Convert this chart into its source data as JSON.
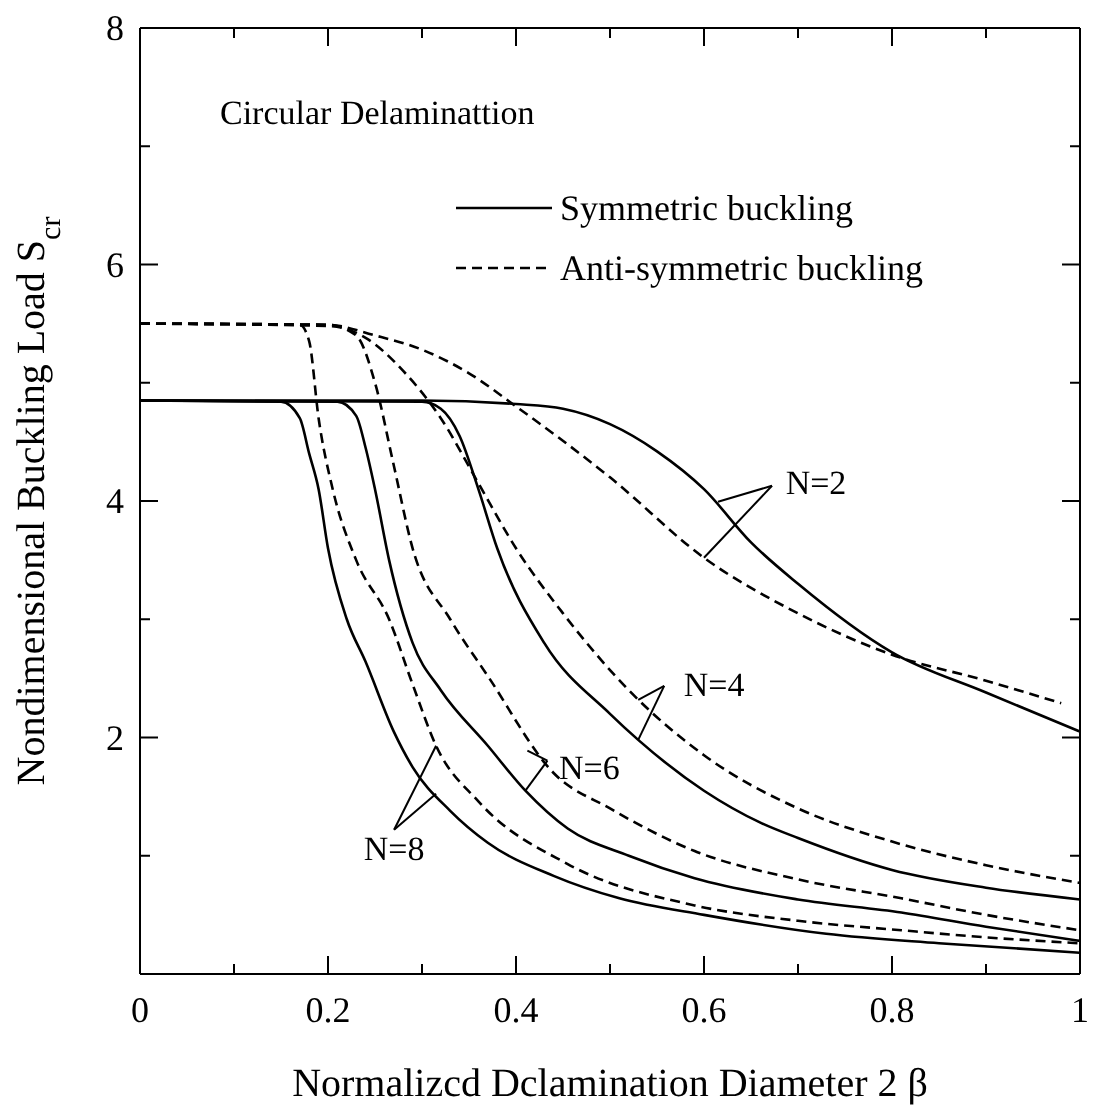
{
  "chart_data": {
    "type": "line",
    "xlabel": "Normalizcd Dclamination Diameter 2 β",
    "ylabel": "Nondimensional Buckling Load  S$_{cr}$",
    "xlim": [
      0,
      1
    ],
    "ylim": [
      0,
      8
    ],
    "xticks": [
      0,
      {
        "value": 0.1,
        "label": null
      },
      0.2,
      {
        "value": 0.3,
        "label": null
      },
      0.4,
      {
        "value": 0.5,
        "label": null
      },
      0.6,
      {
        "value": 0.7,
        "label": null
      },
      0.8,
      {
        "value": 0.9,
        "label": null
      },
      1
    ],
    "yticks": [
      {
        "value": 0,
        "label": null
      },
      {
        "value": 1,
        "label": null
      },
      2,
      {
        "value": 3,
        "label": null
      },
      4,
      {
        "value": 5,
        "label": null
      },
      6,
      {
        "value": 7,
        "label": null
      },
      8
    ],
    "legend": "top right",
    "marker": "none",
    "annotations": [
      "Circular Delaminattion",
      {
        "text": "N=2",
        "x": 0.6,
        "y": 3.52
      },
      {
        "text": "N=4",
        "x": 0.53,
        "y": 1.98
      },
      {
        "text": "N=6",
        "x": 0.41,
        "y": 1.55
      },
      {
        "text": "N=8",
        "x": 0.315,
        "y": 1.93
      }
    ],
    "series": [
      {
        "name": "Symmetric buckling",
        "color": "#000000",
        "line_style": "solid",
        "x": [
          0,
          0.3,
          0.4,
          0.45,
          0.5,
          0.55,
          0.6,
          0.65,
          0.7,
          0.8,
          0.9,
          1.0
        ],
        "values": [
          4.85,
          4.85,
          4.82,
          4.78,
          4.65,
          4.42,
          4.1,
          3.65,
          3.3,
          2.72,
          2.38,
          2.05
        ]
      },
      {
        "name": "Anti-symmetric buckling",
        "color": "#000000",
        "line_style": "dashed",
        "x": [
          0,
          0.2,
          0.25,
          0.3,
          0.35,
          0.4,
          0.5,
          0.6,
          0.7,
          0.8,
          0.9,
          0.98
        ],
        "values": [
          5.5,
          5.49,
          5.4,
          5.28,
          5.08,
          4.8,
          4.2,
          3.52,
          3.05,
          2.7,
          2.48,
          2.29
        ]
      },
      {
        "color": "#000000",
        "line_style": "solid",
        "x": [
          0,
          0.3,
          0.32,
          0.34,
          0.36,
          0.38,
          0.43,
          0.5,
          0.53,
          0.6,
          0.66,
          0.7,
          0.8,
          0.9,
          1.0
        ],
        "values": [
          4.85,
          4.84,
          4.78,
          4.55,
          4.1,
          3.6,
          2.8,
          2.2,
          1.98,
          1.55,
          1.28,
          1.15,
          0.88,
          0.73,
          0.63
        ]
      },
      {
        "color": "#000000",
        "line_style": "dashed",
        "x": [
          0,
          0.2,
          0.24,
          0.28,
          0.32,
          0.36,
          0.4,
          0.45,
          0.52,
          0.6,
          0.7,
          0.8,
          0.9,
          1.0
        ],
        "values": [
          5.5,
          5.48,
          5.38,
          5.1,
          4.7,
          4.15,
          3.6,
          3.05,
          2.4,
          1.85,
          1.4,
          1.12,
          0.92,
          0.77
        ]
      },
      {
        "color": "#000000",
        "line_style": "solid",
        "x": [
          0,
          0.21,
          0.23,
          0.24,
          0.25,
          0.265,
          0.29,
          0.32,
          0.37,
          0.41,
          0.455,
          0.52,
          0.59,
          0.7,
          0.81,
          0.9,
          1.0
        ],
        "values": [
          4.85,
          4.84,
          4.72,
          4.45,
          4.1,
          3.5,
          2.8,
          2.4,
          1.93,
          1.55,
          1.23,
          1.0,
          0.81,
          0.63,
          0.52,
          0.4,
          0.28
        ]
      },
      {
        "color": "#000000",
        "line_style": "dashed",
        "x": [
          0,
          0.2,
          0.23,
          0.25,
          0.27,
          0.29,
          0.33,
          0.37,
          0.44,
          0.5,
          0.59,
          0.7,
          0.81,
          0.9,
          1.0
        ],
        "values": [
          5.5,
          5.49,
          5.4,
          5.0,
          4.3,
          3.6,
          3.0,
          2.52,
          1.7,
          1.4,
          1.04,
          0.8,
          0.64,
          0.5,
          0.37
        ]
      },
      {
        "color": "#000000",
        "line_style": "solid",
        "x": [
          0,
          0.15,
          0.17,
          0.18,
          0.19,
          0.2,
          0.22,
          0.24,
          0.27,
          0.29,
          0.33,
          0.37,
          0.44,
          0.51,
          0.6,
          0.73,
          0.85,
          1.0
        ],
        "values": [
          4.85,
          4.84,
          4.7,
          4.4,
          4.1,
          3.6,
          3.0,
          2.64,
          2.05,
          1.75,
          1.38,
          1.11,
          0.83,
          0.64,
          0.5,
          0.34,
          0.26,
          0.18
        ]
      },
      {
        "color": "#000000",
        "line_style": "dashed",
        "x": [
          0,
          0.17,
          0.18,
          0.19,
          0.205,
          0.23,
          0.265,
          0.29,
          0.315,
          0.36,
          0.455,
          0.59,
          0.7,
          0.81,
          0.9,
          1.0
        ],
        "values": [
          5.5,
          5.49,
          5.35,
          4.7,
          4.1,
          3.5,
          3.0,
          2.45,
          1.93,
          1.46,
          0.93,
          0.58,
          0.45,
          0.37,
          0.31,
          0.26
        ]
      }
    ]
  }
}
